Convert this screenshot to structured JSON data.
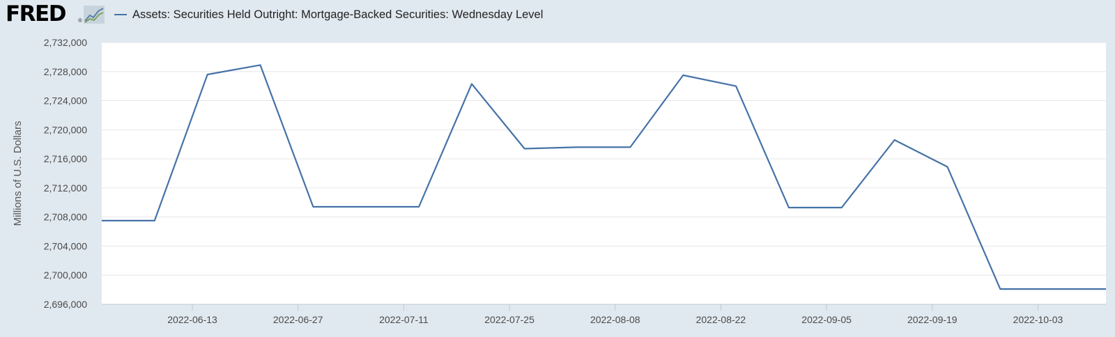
{
  "header": {
    "logo_text": "FRED",
    "logo_reg": "®",
    "series_label": "Assets: Securities Held Outright: Mortgage-Backed Securities: Wednesday Level"
  },
  "colors": {
    "background": "#e1e9f0",
    "plot_background": "#ffffff",
    "line": "#4572a7",
    "grid": "#e6e6e6"
  },
  "chart_data": {
    "type": "line",
    "ylabel": "Millions of U.S. Dollars",
    "ylim": [
      2696000,
      2732000
    ],
    "yticks": [
      2696000,
      2700000,
      2704000,
      2708000,
      2712000,
      2716000,
      2720000,
      2724000,
      2728000,
      2732000
    ],
    "ytick_labels": [
      "2,696,000",
      "2,700,000",
      "2,704,000",
      "2,708,000",
      "2,712,000",
      "2,716,000",
      "2,720,000",
      "2,724,000",
      "2,728,000",
      "2,732,000"
    ],
    "xlim": [
      "2022-06-01",
      "2022-10-12"
    ],
    "xticks": [
      "2022-06-13",
      "2022-06-27",
      "2022-07-11",
      "2022-07-25",
      "2022-08-08",
      "2022-08-22",
      "2022-09-05",
      "2022-09-19",
      "2022-10-03"
    ],
    "grid": true,
    "series": [
      {
        "name": "Assets: Securities Held Outright: Mortgage-Backed Securities: Wednesday Level",
        "x": [
          "2022-06-01",
          "2022-06-08",
          "2022-06-15",
          "2022-06-22",
          "2022-06-29",
          "2022-07-06",
          "2022-07-13",
          "2022-07-20",
          "2022-07-27",
          "2022-08-03",
          "2022-08-10",
          "2022-08-17",
          "2022-08-24",
          "2022-08-31",
          "2022-09-07",
          "2022-09-14",
          "2022-09-21",
          "2022-09-28",
          "2022-10-05",
          "2022-10-12"
        ],
        "y": [
          2707500,
          2707500,
          2727600,
          2728900,
          2709400,
          2709400,
          2709400,
          2726300,
          2717400,
          2717600,
          2717600,
          2727500,
          2726000,
          2709300,
          2709300,
          2718600,
          2714900,
          2698100,
          2698100,
          2698100
        ]
      }
    ]
  }
}
